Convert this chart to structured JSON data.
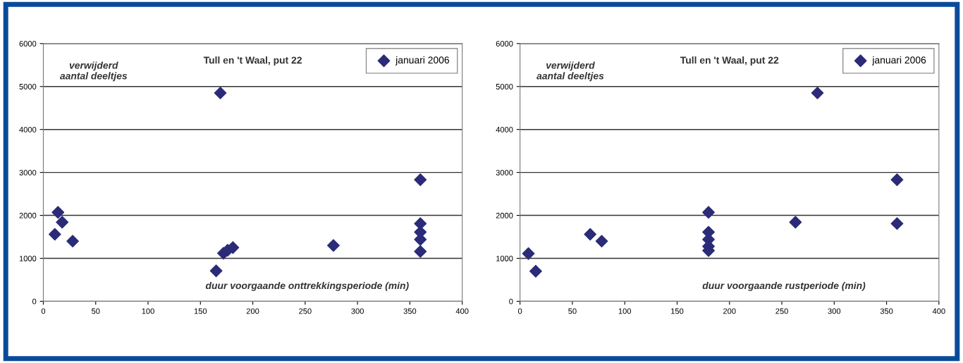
{
  "chart_data": [
    {
      "type": "scatter",
      "title": "Tull en 't Waal, put 22",
      "xlabel": "duur voorgaande onttrekkingsperiode (min)",
      "ylabel": "verwijderd\naantal deeltjes",
      "series": [
        {
          "name": "januari 2006",
          "color": "#2b2b78",
          "x": [
            11,
            14,
            18,
            28,
            169,
            165,
            172,
            176,
            181,
            277,
            360,
            360,
            360,
            360,
            360
          ],
          "values": [
            1560,
            2070,
            1840,
            1400,
            4850,
            710,
            1120,
            1190,
            1250,
            1300,
            2830,
            1810,
            1610,
            1440,
            1160
          ]
        }
      ],
      "xlim": [
        0,
        400
      ],
      "xticks": [
        0,
        50,
        100,
        150,
        200,
        250,
        300,
        350,
        400
      ],
      "ylim": [
        0,
        6000
      ],
      "yticks": [
        0,
        1000,
        2000,
        3000,
        4000,
        5000,
        6000
      ],
      "grid": "y",
      "legend": "top right",
      "marker": "diamond"
    },
    {
      "type": "scatter",
      "title": "Tull en 't Waal, put 22",
      "xlabel": "duur voorgaande rustperiode (min)",
      "ylabel": "verwijderd\naantal deeltjes",
      "series": [
        {
          "name": "januari 2006",
          "color": "#2b2b78",
          "x": [
            8,
            15,
            67,
            78,
            180,
            180,
            180,
            180,
            180,
            263,
            284,
            360,
            360
          ],
          "values": [
            1110,
            700,
            1560,
            1400,
            2070,
            1610,
            1440,
            1280,
            1180,
            1840,
            4850,
            2830,
            1810
          ]
        }
      ],
      "xlim": [
        0,
        400
      ],
      "xticks": [
        0,
        50,
        100,
        150,
        200,
        250,
        300,
        350,
        400
      ],
      "ylim": [
        0,
        6000
      ],
      "yticks": [
        0,
        1000,
        2000,
        3000,
        4000,
        5000,
        6000
      ],
      "grid": "y",
      "legend": "top right",
      "marker": "diamond"
    }
  ]
}
